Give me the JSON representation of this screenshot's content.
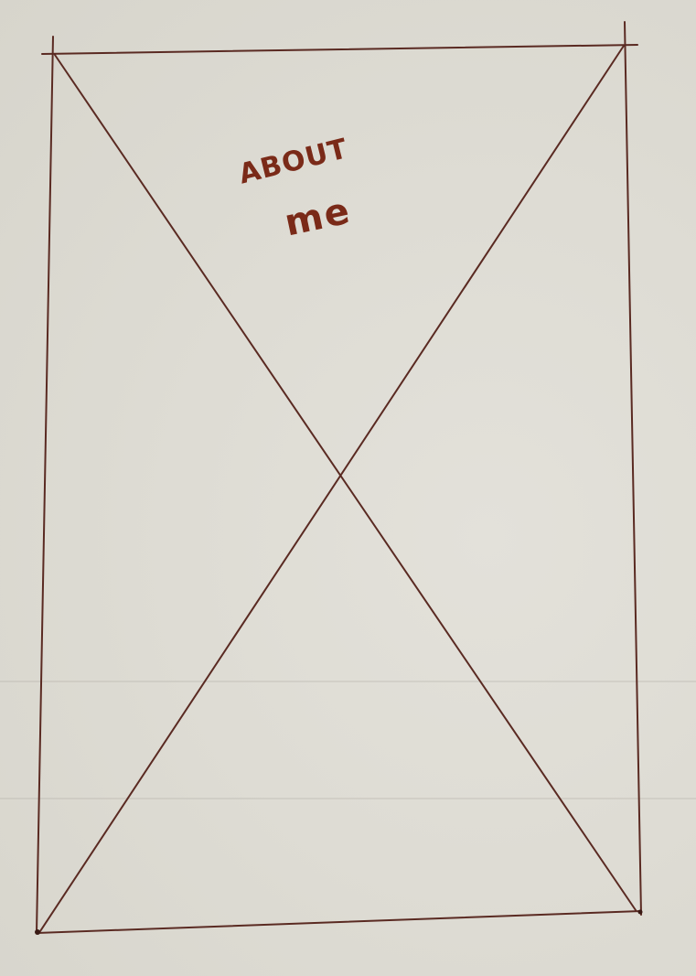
{
  "sketch": {
    "label_line_1": "ABOUT",
    "label_line_2": "me"
  },
  "colors": {
    "paper": "#dedcd4",
    "pencil_line": "#5a2a22",
    "ink": "#7a2a18"
  }
}
